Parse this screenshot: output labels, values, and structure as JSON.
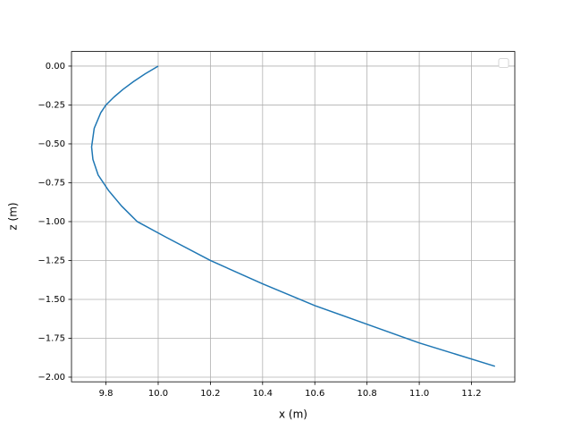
{
  "chart_data": {
    "type": "line",
    "xlabel": "x (m)",
    "ylabel": "z (m)",
    "x": [
      10.0,
      9.95,
      9.905,
      9.865,
      9.83,
      9.8,
      9.78,
      9.755,
      9.745,
      9.75,
      9.77,
      9.81,
      9.86,
      9.92,
      10.03,
      10.2,
      10.4,
      10.6,
      10.8,
      11.0,
      11.29
    ],
    "series": [
      {
        "color": "#1f77b4",
        "values": [
          0,
          -0.05,
          -0.1,
          -0.15,
          -0.2,
          -0.25,
          -0.3,
          -0.4,
          -0.52,
          -0.6,
          -0.7,
          -0.8,
          -0.9,
          -1.0,
          -1.1,
          -1.25,
          -1.4,
          -1.54,
          -1.66,
          -1.78,
          -1.93
        ]
      }
    ],
    "xlim": [
      9.668,
      11.366
    ],
    "ylim": [
      -2.03,
      0.094
    ],
    "xticks": [
      9.8,
      {
        "value": 10,
        "label": "10.0"
      },
      10.2,
      10.4,
      10.6,
      10.8,
      {
        "value": 11,
        "label": "11.0"
      },
      11.2
    ],
    "yticks": [
      {
        "value": 0,
        "label": "0.00"
      },
      {
        "value": -0.25,
        "label": "−0.25"
      },
      {
        "value": -0.5,
        "label": "−0.50"
      },
      {
        "value": -0.75,
        "label": "−0.75"
      },
      {
        "value": -1,
        "label": "−1.00"
      },
      {
        "value": -1.25,
        "label": "−1.25"
      },
      {
        "value": -1.5,
        "label": "−1.50"
      },
      {
        "value": -1.75,
        "label": "−1.75"
      },
      {
        "value": -2,
        "label": "−2.00"
      }
    ],
    "grid": true,
    "legend": "upper right"
  }
}
